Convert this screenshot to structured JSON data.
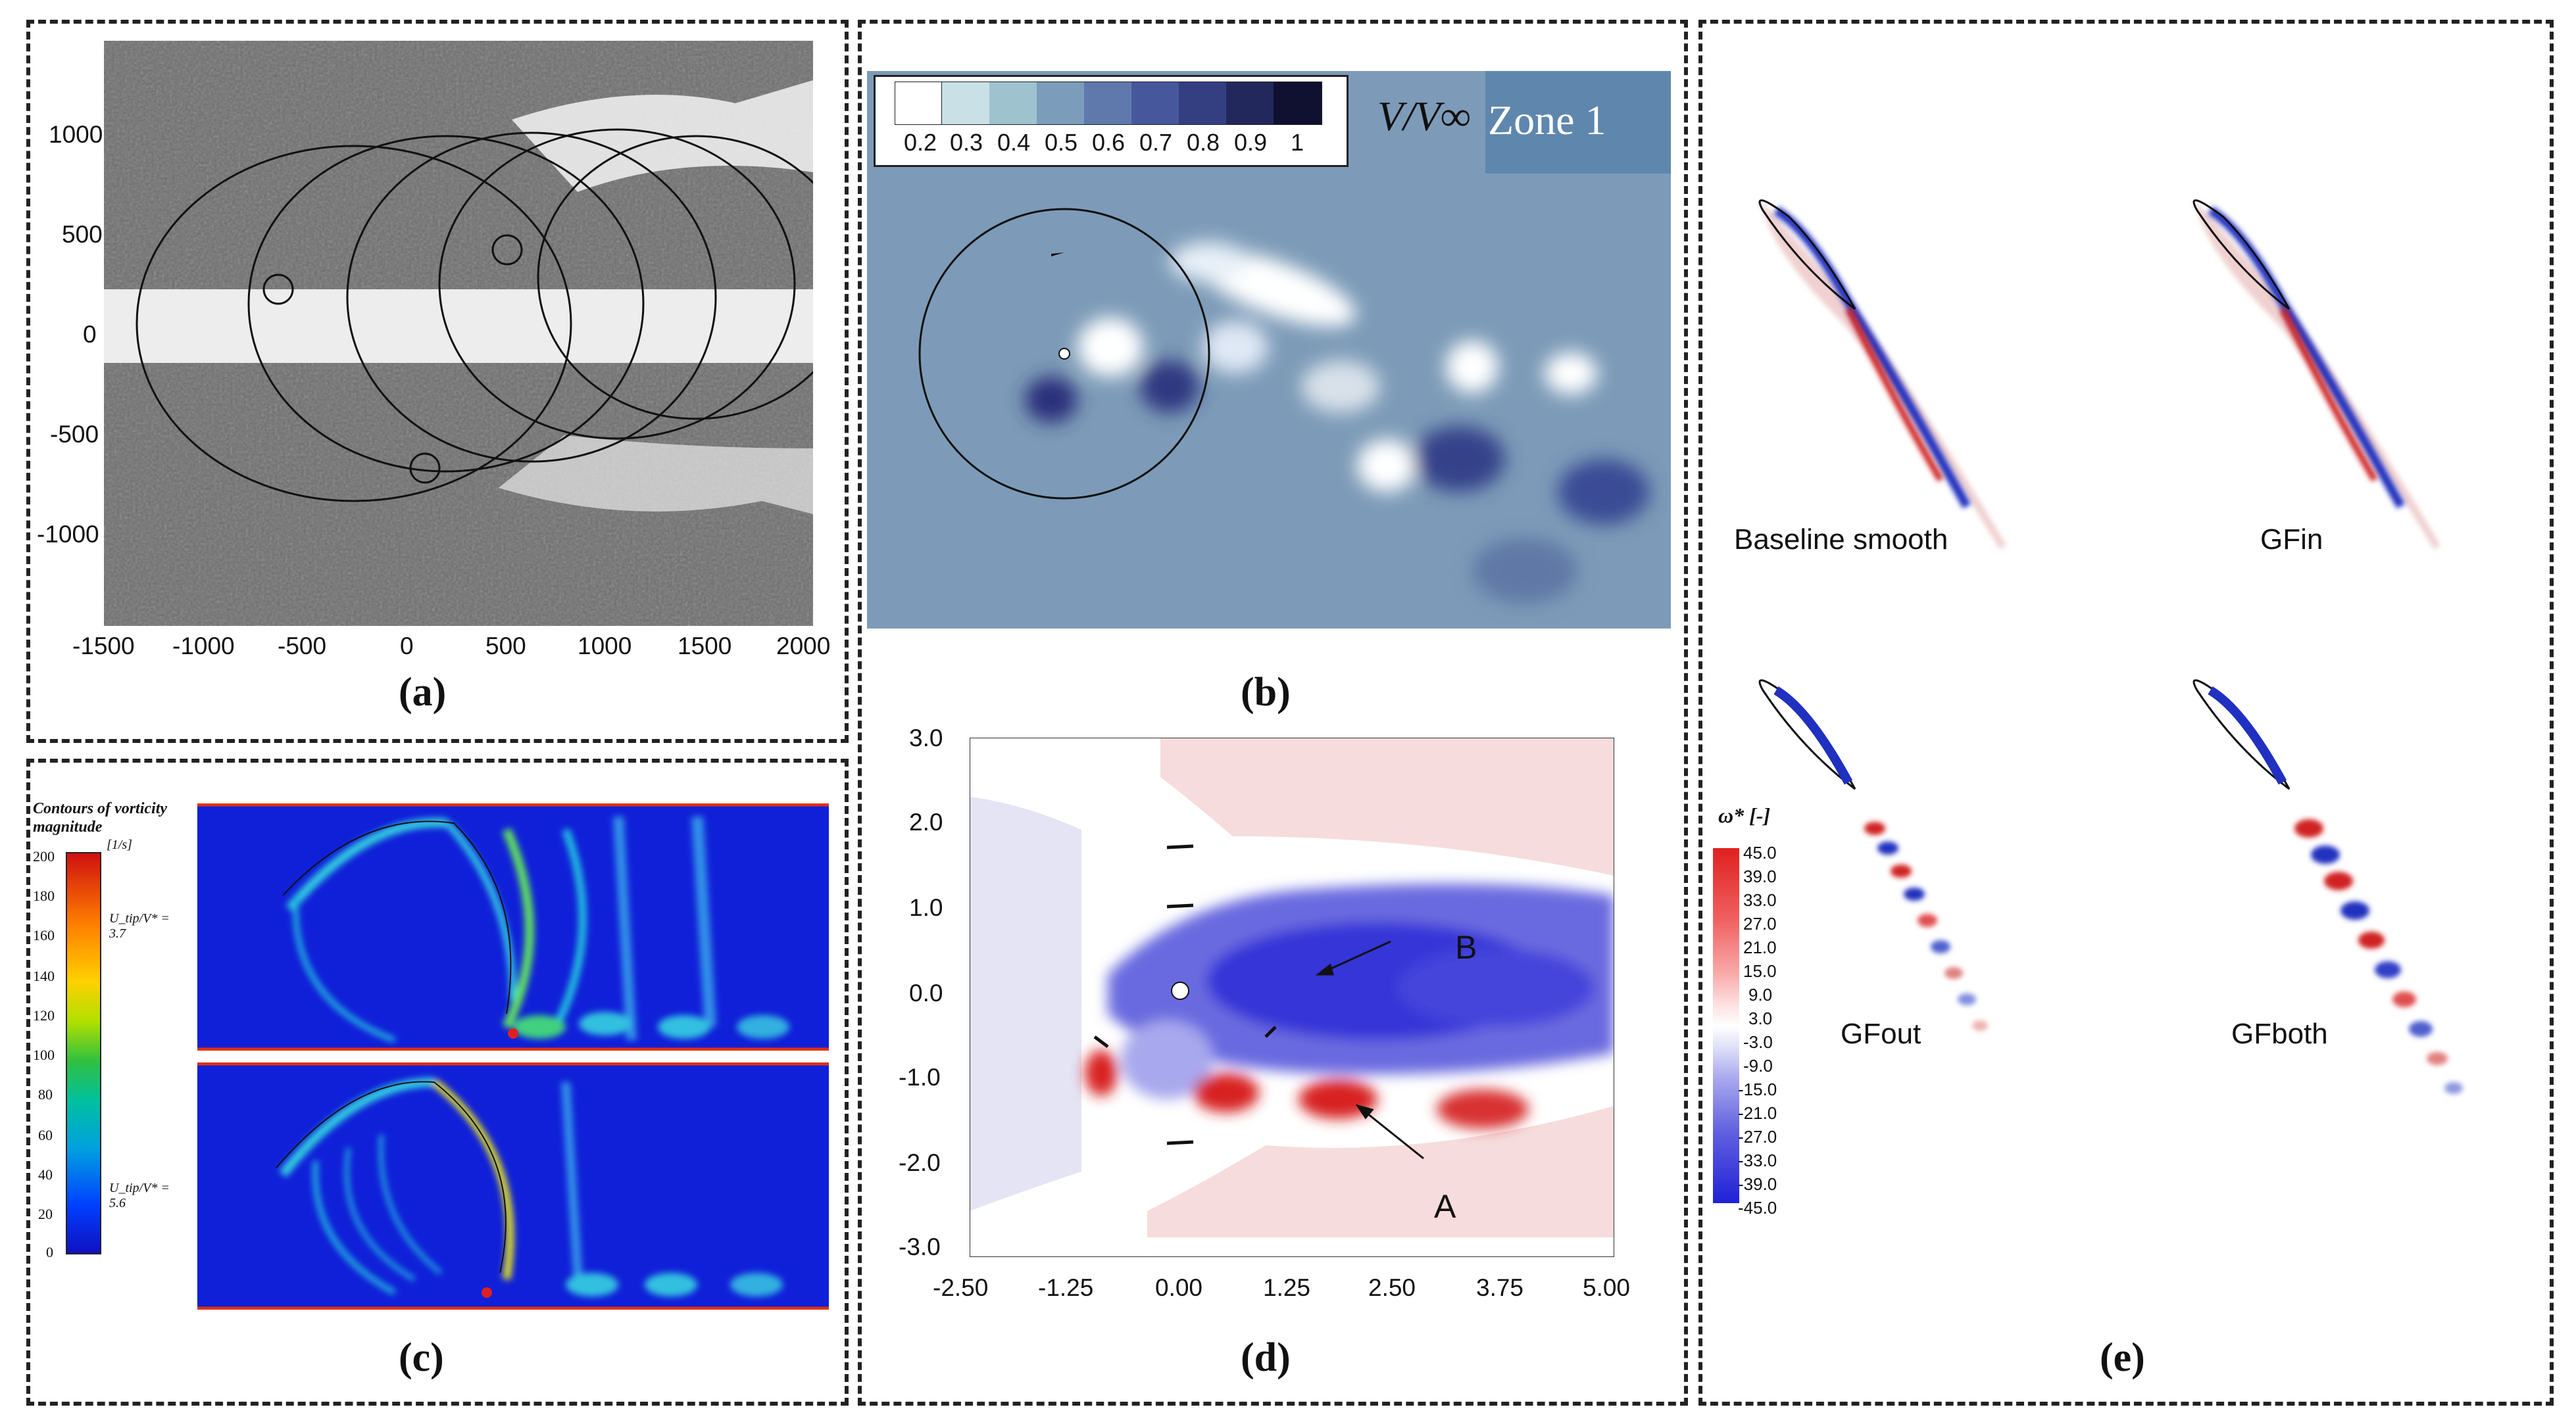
{
  "captions": {
    "a": "(a)",
    "b": "(b)",
    "c": "(c)",
    "d": "(d)",
    "e": "(e)"
  },
  "panel_a": {
    "x_ticks": [
      "-1500",
      "-1000",
      "-500",
      "0",
      "500",
      "1000",
      "1500",
      "2000"
    ],
    "y_ticks": [
      "1000",
      "500",
      "0",
      "-500",
      "-1000"
    ]
  },
  "panel_b": {
    "colorbar_ticks": [
      "0.2",
      "0.3",
      "0.4",
      "0.5",
      "0.6",
      "0.7",
      "0.8",
      "0.9",
      "1"
    ],
    "variable_label": "V/V∞",
    "zone_label": "Zone 1",
    "colors": {
      "field": "#7d9bb8",
      "zone_bg": "#5f87ad"
    }
  },
  "panel_c": {
    "legend_title": "Contours of vorticity magnitude",
    "legend_unit": "[1/s]",
    "legend_ticks": [
      "200",
      "180",
      "160",
      "140",
      "120",
      "100",
      "80",
      "60",
      "40",
      "20",
      "0"
    ],
    "case_top": "U_tip/V* = 3.7",
    "case_bottom": "U_tip/V* = 5.6"
  },
  "panel_d": {
    "x_ticks": [
      "-2.50",
      "-1.25",
      "0.00",
      "1.25",
      "2.50",
      "3.75",
      "5.00"
    ],
    "y_ticks": [
      "3.0",
      "2.0",
      "1.0",
      "0.0",
      "-1.0",
      "-2.0",
      "-3.0"
    ],
    "annotations": {
      "a": "A",
      "b": "B"
    }
  },
  "panel_e": {
    "labels": {
      "baseline": "Baseline smooth",
      "gfin": "GFin",
      "gfout": "GFout",
      "gfboth": "GFboth"
    },
    "legend_title": "ω* [-]",
    "legend_ticks": [
      "45.0",
      "39.0",
      "33.0",
      "27.0",
      "21.0",
      "15.0",
      "9.0",
      "3.0",
      "-3.0",
      "-9.0",
      "-15.0",
      "-21.0",
      "-27.0",
      "-33.0",
      "-39.0",
      "-45.0"
    ]
  }
}
